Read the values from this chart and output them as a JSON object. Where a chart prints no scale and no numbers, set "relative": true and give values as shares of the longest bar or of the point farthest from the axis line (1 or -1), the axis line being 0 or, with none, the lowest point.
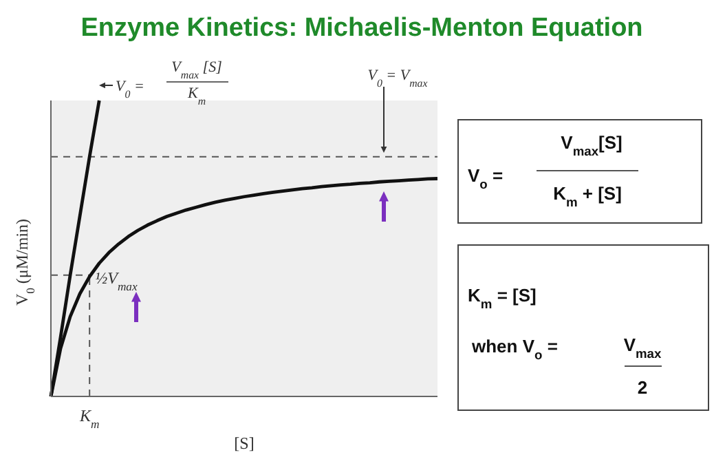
{
  "chart_data": [
    {
      "type": "line",
      "title": "Enzyme Kinetics: Michaelis-Menton Equation",
      "xlabel": "[S]",
      "ylabel": "V$_{0}$ (μM/min)",
      "relative": true,
      "categories": [
        null,
        null,
        null,
        null,
        null,
        null,
        null,
        null,
        null,
        null,
        null,
        null,
        null,
        null,
        null,
        null,
        null,
        null,
        null,
        null,
        null,
        null,
        null,
        null,
        null,
        null,
        null,
        null,
        null,
        null,
        null,
        null,
        null,
        null,
        null,
        null,
        null,
        null,
        null,
        null,
        null
      ],
      "series": [
        {
          "color": "#111111",
          "values": [
            0,
            0.2,
            0.41,
            0.61,
            0.81,
            1,
            null,
            null,
            null,
            null,
            null,
            null,
            null,
            null,
            null,
            null,
            null,
            null,
            null,
            null,
            null,
            null,
            null,
            null,
            null,
            null,
            null,
            null,
            null,
            null,
            null,
            null,
            null,
            null,
            null,
            null,
            null,
            null,
            null,
            null,
            null
          ]
        },
        {
          "color": "#111111",
          "values": [
            0,
            0.162,
            0.27,
            0.347,
            0.405,
            0.45,
            0.486,
            0.515,
            0.54,
            0.561,
            0.579,
            0.594,
            0.608,
            0.619,
            0.63,
            0.639,
            0.648,
            0.656,
            0.663,
            0.669,
            0.675,
            0.68,
            0.685,
            0.69,
            0.694,
            0.698,
            0.702,
            0.705,
            0.709,
            0.712,
            0.715,
            0.717,
            0.72,
            0.722,
            0.725,
            0.727,
            0.729,
            0.731,
            0.733,
            0.735,
            0.736
          ]
        }
      ],
      "ref_lines": [
        {
          "axis": "y",
          "value": 0.81,
          "line_style": "dashed"
        },
        {
          "axis": "y",
          "value": 0.41,
          "label": "½V$_{max}$",
          "line_style": "dashed"
        }
      ],
      "annotations": [
        "V$_{0}$ =",
        "V$_{max}$ [S]",
        "K$_{m}$",
        "V$_{0}$ = V$_{max}$",
        "K$_{m}$"
      ]
    },
    {
      "type": "other",
      "annotations": [
        "V$_{o}$ =",
        "V$_{max}$[S]",
        "K$_{m}$ + [S]",
        "K$_{m}$ = [S]",
        "when V$_{o}$ =",
        "V$_{max}$",
        "2"
      ]
    }
  ]
}
